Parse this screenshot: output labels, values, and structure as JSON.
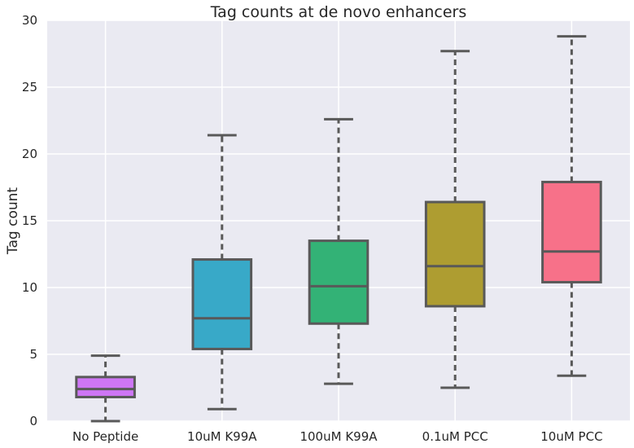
{
  "chart_data": {
    "type": "box",
    "title": "Tag counts at de novo enhancers",
    "xlabel": "",
    "ylabel": "Tag count",
    "ylim": [
      0,
      30
    ],
    "yticks": [
      0,
      5,
      10,
      15,
      20,
      25,
      30
    ],
    "grid": true,
    "categories": [
      "No Peptide",
      "10uM K99A",
      "100uM K99A",
      "0.1uM PCC",
      "10uM PCC"
    ],
    "boxes": [
      {
        "category": "No Peptide",
        "whisker_low": 0.0,
        "q1": 1.8,
        "median": 2.4,
        "q3": 3.3,
        "whisker_high": 4.9,
        "color": "#CE76F5"
      },
      {
        "category": "10uM K99A",
        "whisker_low": 0.9,
        "q1": 5.4,
        "median": 7.7,
        "q3": 12.1,
        "whisker_high": 21.4,
        "color": "#38A9C8"
      },
      {
        "category": "100uM K99A",
        "whisker_low": 2.8,
        "q1": 7.3,
        "median": 10.1,
        "q3": 13.5,
        "whisker_high": 22.6,
        "color": "#33B276"
      },
      {
        "category": "0.1uM PCC",
        "whisker_low": 2.5,
        "q1": 8.6,
        "median": 11.6,
        "q3": 16.4,
        "whisker_high": 27.7,
        "color": "#AE9D31"
      },
      {
        "category": "10uM PCC",
        "whisker_low": 3.4,
        "q1": 10.4,
        "median": 12.7,
        "q3": 17.9,
        "whisker_high": 28.8,
        "color": "#F77189"
      }
    ],
    "colors": {
      "background": "#EAEAF2",
      "grid": "#FFFFFF",
      "box_edge": "#595959"
    }
  }
}
